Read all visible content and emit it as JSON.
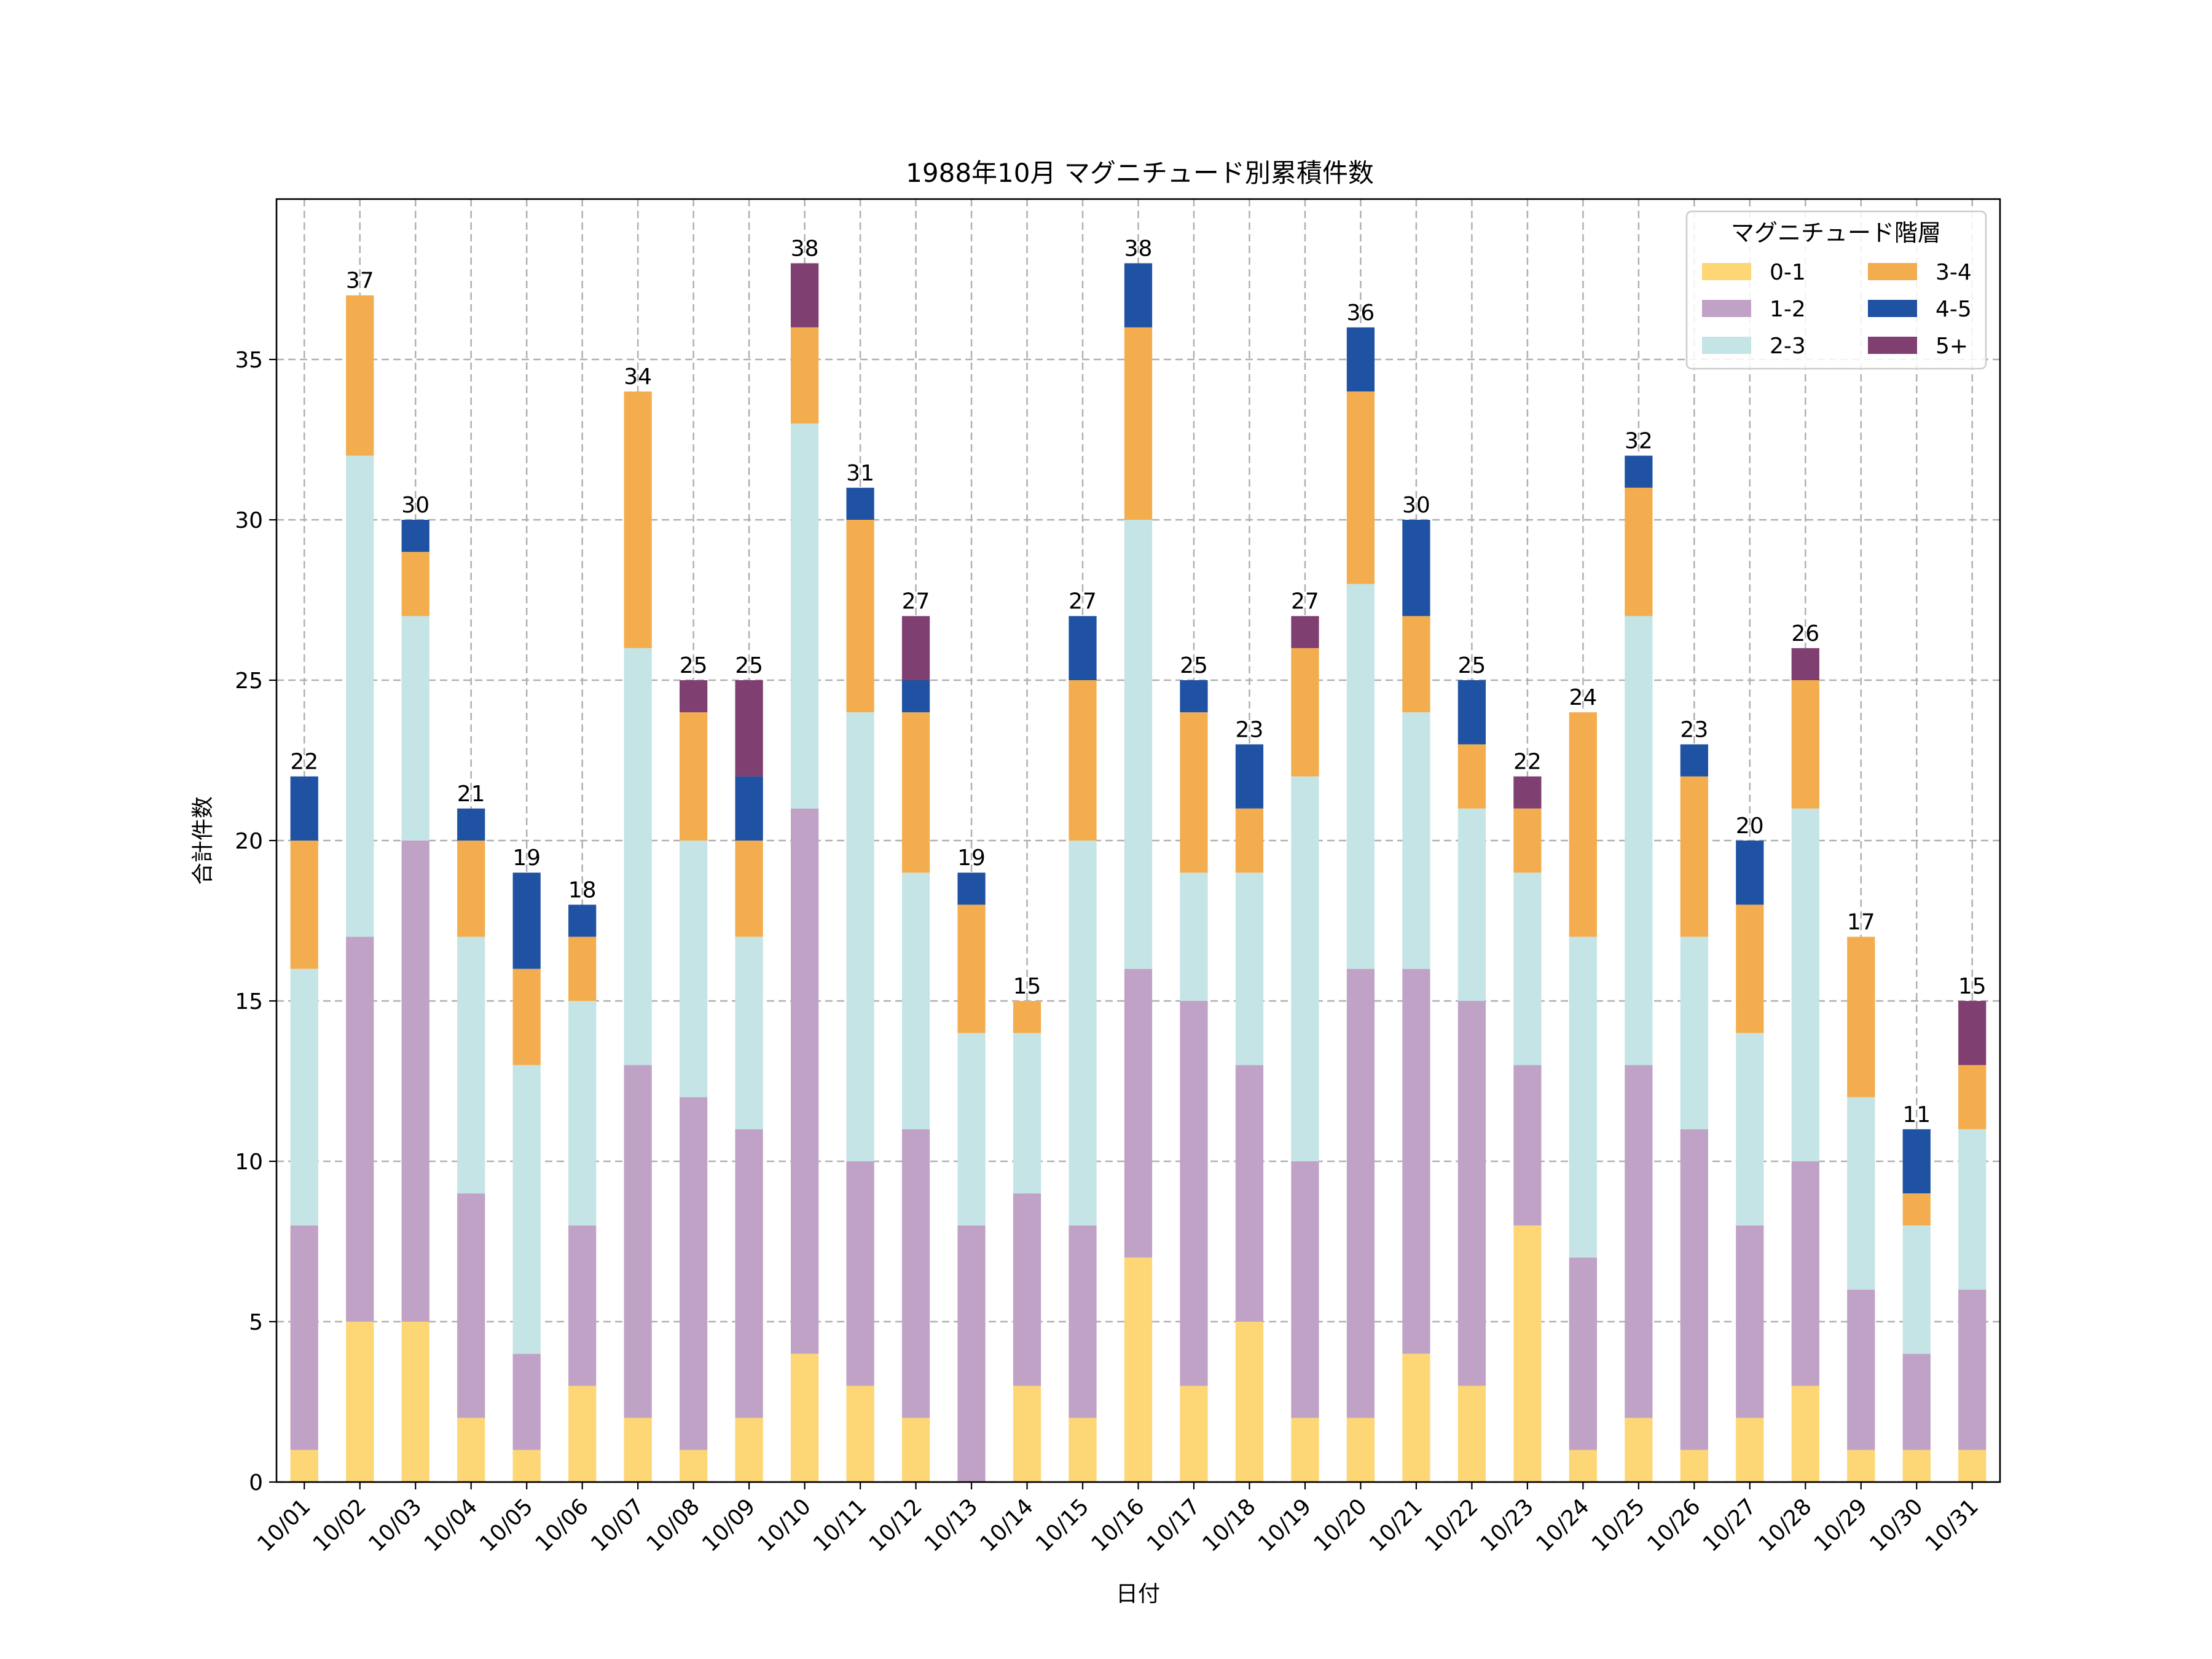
{
  "chart_data": {
    "type": "bar",
    "stacked": true,
    "title": "1988年10月 マグニチュード別累積件数",
    "xlabel": "日付",
    "ylabel": "合計件数",
    "ylim": [
      0,
      40
    ],
    "yticks": [
      0,
      5,
      10,
      15,
      20,
      25,
      30,
      35
    ],
    "grid": true,
    "legend_title": "マグニチュード階層",
    "legend_position": "top-right",
    "categories": [
      "10/01",
      "10/02",
      "10/03",
      "10/04",
      "10/05",
      "10/06",
      "10/07",
      "10/08",
      "10/09",
      "10/10",
      "10/11",
      "10/12",
      "10/13",
      "10/14",
      "10/15",
      "10/16",
      "10/17",
      "10/18",
      "10/19",
      "10/20",
      "10/21",
      "10/22",
      "10/23",
      "10/24",
      "10/25",
      "10/26",
      "10/27",
      "10/28",
      "10/29",
      "10/30",
      "10/31"
    ],
    "series": [
      {
        "name": "0-1",
        "color": "#fdd675",
        "values": [
          1,
          5,
          5,
          2,
          1,
          3,
          2,
          1,
          2,
          4,
          3,
          2,
          0,
          3,
          2,
          7,
          3,
          5,
          2,
          2,
          4,
          3,
          8,
          1,
          2,
          1,
          2,
          3,
          1,
          1,
          1
        ]
      },
      {
        "name": "1-2",
        "color": "#c0a2c7",
        "values": [
          7,
          12,
          15,
          7,
          3,
          5,
          11,
          11,
          9,
          17,
          7,
          9,
          8,
          6,
          6,
          9,
          12,
          8,
          8,
          14,
          12,
          12,
          5,
          6,
          11,
          10,
          6,
          7,
          5,
          3,
          5
        ]
      },
      {
        "name": "2-3",
        "color": "#c4e4e6",
        "values": [
          8,
          15,
          7,
          8,
          9,
          7,
          13,
          8,
          6,
          12,
          14,
          8,
          6,
          5,
          12,
          14,
          4,
          6,
          12,
          12,
          8,
          6,
          6,
          10,
          14,
          6,
          6,
          11,
          6,
          4,
          5
        ]
      },
      {
        "name": "3-4",
        "color": "#f3ad4e",
        "values": [
          4,
          5,
          2,
          3,
          3,
          2,
          8,
          4,
          3,
          3,
          6,
          5,
          4,
          1,
          5,
          6,
          5,
          2,
          4,
          6,
          3,
          2,
          2,
          7,
          4,
          5,
          4,
          4,
          5,
          1,
          2
        ]
      },
      {
        "name": "4-5",
        "color": "#1f52a3",
        "values": [
          2,
          0,
          1,
          1,
          3,
          1,
          0,
          0,
          2,
          0,
          1,
          1,
          1,
          0,
          2,
          2,
          1,
          2,
          0,
          2,
          3,
          2,
          0,
          0,
          1,
          1,
          2,
          0,
          0,
          2,
          0
        ]
      },
      {
        "name": "5+",
        "color": "#7f3f70",
        "values": [
          0,
          0,
          0,
          0,
          0,
          0,
          0,
          1,
          3,
          2,
          0,
          2,
          0,
          0,
          0,
          0,
          0,
          0,
          1,
          0,
          0,
          0,
          1,
          0,
          0,
          0,
          0,
          1,
          0,
          0,
          2
        ]
      }
    ],
    "totals": [
      22,
      37,
      30,
      21,
      19,
      18,
      34,
      25,
      25,
      38,
      31,
      27,
      19,
      15,
      27,
      38,
      25,
      23,
      27,
      36,
      30,
      25,
      22,
      24,
      32,
      23,
      20,
      26,
      17,
      11,
      15
    ]
  }
}
